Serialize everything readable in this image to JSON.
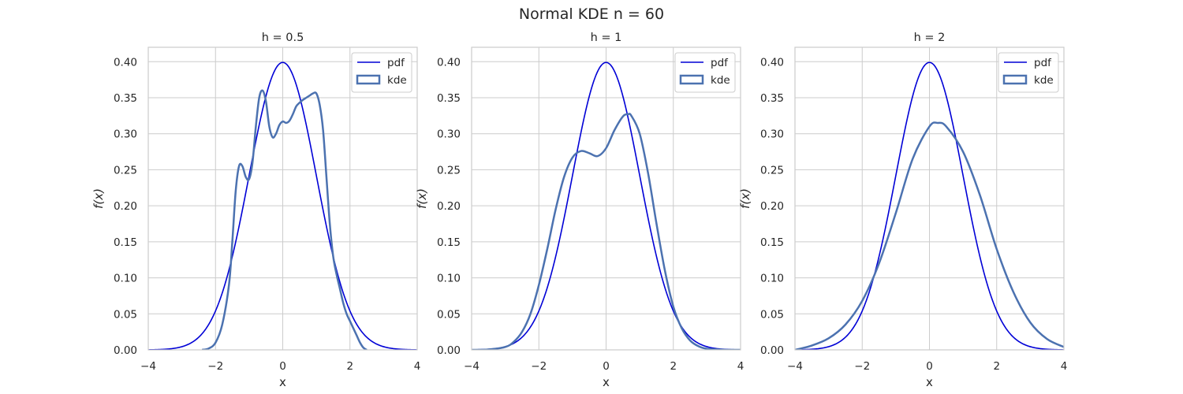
{
  "figure": {
    "title": "Normal KDE n = 60"
  },
  "legend": {
    "pdf_label": "pdf",
    "kde_label": "kde",
    "position": "top-right"
  },
  "colors": {
    "pdf": "#0000d6",
    "kde": "#4c72b0",
    "grid": "#cccccc",
    "frame": "#cccccc",
    "background": "#ffffff"
  },
  "chart_data": [
    {
      "type": "line",
      "title": "h = 0.5",
      "xlabel": "x",
      "ylabel": "f(x)",
      "xlim": [
        -4,
        4
      ],
      "ylim": [
        0,
        0.42
      ],
      "xticks": [
        -4,
        -2,
        0,
        2,
        4
      ],
      "xtick_labels": [
        "−4",
        "−2",
        "0",
        "2",
        "4"
      ],
      "yticks": [
        0,
        0.05,
        0.1,
        0.15,
        0.2,
        0.25,
        0.3,
        0.35,
        0.4
      ],
      "ytick_labels": [
        "0.00",
        "0.05",
        "0.10",
        "0.15",
        "0.20",
        "0.25",
        "0.30",
        "0.35",
        "0.40"
      ],
      "grid": true,
      "series": [
        {
          "name": "pdf",
          "function": "standard normal density",
          "mu": 0,
          "sigma": 1,
          "x_range": [
            -4,
            4
          ]
        },
        {
          "name": "kde",
          "x": [
            -2.4,
            -2.2,
            -2.0,
            -1.8,
            -1.6,
            -1.5,
            -1.4,
            -1.3,
            -1.2,
            -1.1,
            -1.0,
            -0.9,
            -0.8,
            -0.7,
            -0.6,
            -0.5,
            -0.4,
            -0.3,
            -0.2,
            -0.1,
            0.0,
            0.1,
            0.2,
            0.3,
            0.4,
            0.5,
            0.6,
            0.7,
            0.8,
            0.9,
            1.0,
            1.1,
            1.2,
            1.3,
            1.4,
            1.5,
            1.6,
            1.7,
            1.8,
            1.9,
            2.0,
            2.1,
            2.2,
            2.3,
            2.4,
            2.5
          ],
          "y": [
            0.0,
            0.002,
            0.01,
            0.035,
            0.09,
            0.15,
            0.22,
            0.255,
            0.255,
            0.24,
            0.237,
            0.26,
            0.31,
            0.35,
            0.36,
            0.345,
            0.31,
            0.295,
            0.3,
            0.312,
            0.317,
            0.315,
            0.318,
            0.327,
            0.338,
            0.343,
            0.347,
            0.35,
            0.353,
            0.356,
            0.356,
            0.34,
            0.305,
            0.24,
            0.175,
            0.13,
            0.105,
            0.085,
            0.065,
            0.05,
            0.04,
            0.03,
            0.02,
            0.01,
            0.003,
            0.0
          ]
        }
      ]
    },
    {
      "type": "line",
      "title": "h = 1",
      "xlabel": "x",
      "ylabel": "f(x)",
      "xlim": [
        -4,
        4
      ],
      "ylim": [
        0,
        0.42
      ],
      "xticks": [
        -4,
        -2,
        0,
        2,
        4
      ],
      "xtick_labels": [
        "−4",
        "−2",
        "0",
        "2",
        "4"
      ],
      "yticks": [
        0,
        0.05,
        0.1,
        0.15,
        0.2,
        0.25,
        0.3,
        0.35,
        0.4
      ],
      "ytick_labels": [
        "0.00",
        "0.05",
        "0.10",
        "0.15",
        "0.20",
        "0.25",
        "0.30",
        "0.35",
        "0.40"
      ],
      "grid": true,
      "series": [
        {
          "name": "pdf",
          "function": "standard normal density",
          "mu": 0,
          "sigma": 1,
          "x_range": [
            -4,
            4
          ]
        },
        {
          "name": "kde",
          "x": [
            -4.0,
            -3.5,
            -3.0,
            -2.75,
            -2.5,
            -2.25,
            -2.0,
            -1.75,
            -1.5,
            -1.25,
            -1.0,
            -0.75,
            -0.5,
            -0.25,
            0.0,
            0.25,
            0.5,
            0.65,
            0.75,
            1.0,
            1.25,
            1.5,
            1.75,
            2.0,
            2.25,
            2.5,
            2.75,
            3.0,
            3.5,
            4.0
          ],
          "y": [
            0.0,
            0.0005,
            0.004,
            0.011,
            0.025,
            0.05,
            0.09,
            0.14,
            0.195,
            0.24,
            0.267,
            0.276,
            0.273,
            0.269,
            0.28,
            0.305,
            0.324,
            0.327,
            0.325,
            0.3,
            0.245,
            0.175,
            0.11,
            0.06,
            0.03,
            0.013,
            0.005,
            0.0015,
            0.0002,
            0.0
          ]
        }
      ]
    },
    {
      "type": "line",
      "title": "h = 2",
      "xlabel": "x",
      "ylabel": "f(x)",
      "xlim": [
        -4,
        4
      ],
      "ylim": [
        0,
        0.42
      ],
      "xticks": [
        -4,
        -2,
        0,
        2,
        4
      ],
      "xtick_labels": [
        "−4",
        "−2",
        "0",
        "2",
        "4"
      ],
      "yticks": [
        0,
        0.05,
        0.1,
        0.15,
        0.2,
        0.25,
        0.3,
        0.35,
        0.4
      ],
      "ytick_labels": [
        "0.00",
        "0.05",
        "0.10",
        "0.15",
        "0.20",
        "0.25",
        "0.30",
        "0.35",
        "0.40"
      ],
      "grid": true,
      "series": [
        {
          "name": "pdf",
          "function": "standard normal density",
          "mu": 0,
          "sigma": 1,
          "x_range": [
            -4,
            4
          ]
        },
        {
          "name": "kde",
          "x": [
            -4.0,
            -3.5,
            -3.0,
            -2.5,
            -2.0,
            -1.5,
            -1.0,
            -0.5,
            0.0,
            0.25,
            0.5,
            1.0,
            1.5,
            2.0,
            2.5,
            3.0,
            3.5,
            4.0
          ],
          "y": [
            0.0,
            0.006,
            0.016,
            0.035,
            0.068,
            0.12,
            0.19,
            0.265,
            0.31,
            0.315,
            0.31,
            0.275,
            0.215,
            0.14,
            0.08,
            0.038,
            0.015,
            0.004
          ]
        }
      ]
    }
  ]
}
